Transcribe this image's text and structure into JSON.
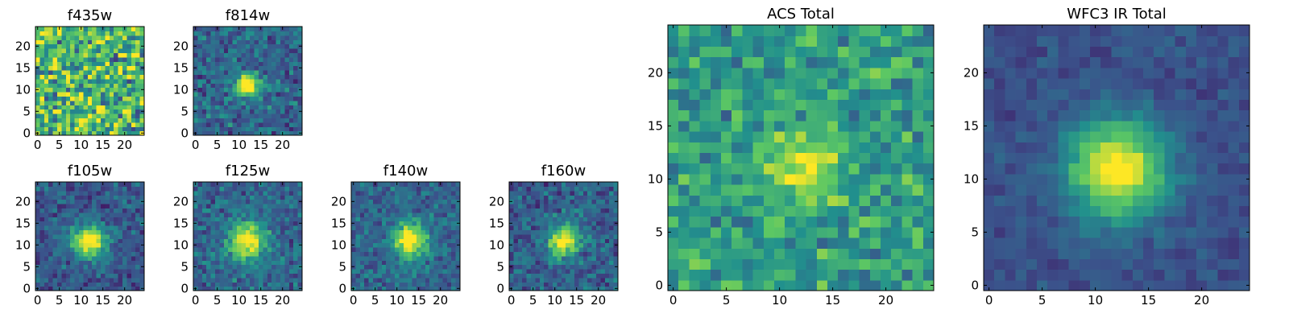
{
  "figure": {
    "title": ""
  },
  "colormap": {
    "name": "viridis",
    "stops": [
      "#440154",
      "#3b528b",
      "#21908d",
      "#5dc863",
      "#fde725"
    ]
  },
  "chart_data": [
    {
      "type": "heatmap",
      "title": "f435w",
      "ylim": [
        0,
        24
      ],
      "xlim": [
        0,
        24
      ],
      "xticks": [
        "0",
        "5",
        "10",
        "15",
        "20"
      ],
      "yticks": [
        "0",
        "5",
        "10",
        "15",
        "20"
      ],
      "grid_size": 25,
      "peak": [
        12,
        12
      ],
      "signal": 0.0,
      "spread": 4.0,
      "background": 0.68,
      "noise": 0.5
    },
    {
      "type": "heatmap",
      "title": "f814w",
      "ylim": [
        0,
        24
      ],
      "xlim": [
        0,
        24
      ],
      "xticks": [
        "0",
        "5",
        "10",
        "15",
        "20"
      ],
      "yticks": [
        "0",
        "5",
        "10",
        "15",
        "20"
      ],
      "grid_size": 25,
      "peak": [
        12,
        11
      ],
      "signal": 0.75,
      "spread": 2.0,
      "background": 0.33,
      "noise": 0.25
    },
    {
      "type": "heatmap",
      "title": "f105w",
      "ylim": [
        0,
        24
      ],
      "xlim": [
        0,
        24
      ],
      "xticks": [
        "0",
        "5",
        "10",
        "15",
        "20"
      ],
      "yticks": [
        "0",
        "5",
        "10",
        "15",
        "20"
      ],
      "grid_size": 25,
      "peak": [
        12,
        11
      ],
      "signal": 0.8,
      "spread": 2.7,
      "background": 0.28,
      "noise": 0.2
    },
    {
      "type": "heatmap",
      "title": "f125w",
      "ylim": [
        0,
        24
      ],
      "xlim": [
        0,
        24
      ],
      "xticks": [
        "0",
        "5",
        "10",
        "15",
        "20"
      ],
      "yticks": [
        "0",
        "5",
        "10",
        "15",
        "20"
      ],
      "grid_size": 25,
      "peak": [
        12,
        11
      ],
      "signal": 0.72,
      "spread": 3.0,
      "background": 0.33,
      "noise": 0.22
    },
    {
      "type": "heatmap",
      "title": "f140w",
      "ylim": [
        0,
        24
      ],
      "xlim": [
        0,
        24
      ],
      "xticks": [
        "0",
        "5",
        "10",
        "15",
        "20"
      ],
      "yticks": [
        "0",
        "5",
        "10",
        "15",
        "20"
      ],
      "grid_size": 25,
      "peak": [
        13,
        11
      ],
      "signal": 0.75,
      "spread": 2.8,
      "background": 0.33,
      "noise": 0.2
    },
    {
      "type": "heatmap",
      "title": "f160w",
      "ylim": [
        0,
        24
      ],
      "xlim": [
        0,
        24
      ],
      "xticks": [
        "0",
        "5",
        "10",
        "15",
        "20"
      ],
      "yticks": [
        "0",
        "5",
        "10",
        "15",
        "20"
      ],
      "grid_size": 25,
      "peak": [
        12,
        11
      ],
      "signal": 0.75,
      "spread": 2.6,
      "background": 0.3,
      "noise": 0.22
    },
    {
      "type": "heatmap",
      "title": "ACS Total",
      "ylim": [
        0,
        24
      ],
      "xlim": [
        0,
        24
      ],
      "xticks": [
        "0",
        "5",
        "10",
        "15",
        "20"
      ],
      "yticks": [
        "0",
        "5",
        "10",
        "15",
        "20"
      ],
      "grid_size": 25,
      "peak": [
        12,
        11
      ],
      "signal": 0.4,
      "spread": 2.4,
      "background": 0.55,
      "noise": 0.28
    },
    {
      "type": "heatmap",
      "title": "WFC3 IR Total",
      "ylim": [
        0,
        24
      ],
      "xlim": [
        0,
        24
      ],
      "xticks": [
        "0",
        "5",
        "10",
        "15",
        "20"
      ],
      "yticks": [
        "0",
        "5",
        "10",
        "15",
        "20"
      ],
      "grid_size": 25,
      "peak": [
        12,
        11
      ],
      "signal": 0.78,
      "spread": 3.2,
      "background": 0.25,
      "noise": 0.1
    }
  ]
}
